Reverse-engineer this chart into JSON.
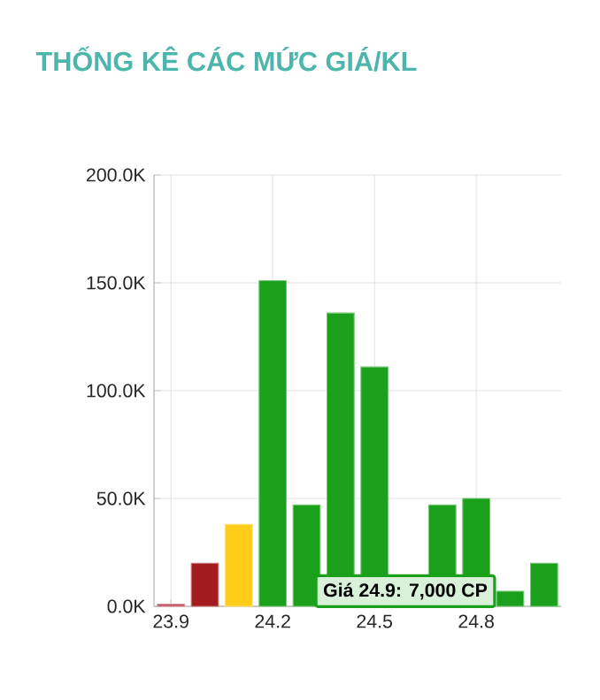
{
  "chart_data": {
    "type": "bar",
    "title": "THỐNG KÊ CÁC MỨC GIÁ/KL",
    "x": [
      23.9,
      24.0,
      24.1,
      24.2,
      24.3,
      24.4,
      24.5,
      24.6,
      24.7,
      24.8,
      24.9,
      25.0
    ],
    "values": [
      1000,
      20000,
      38000,
      151000,
      47000,
      136000,
      111000,
      null,
      47000,
      50000,
      7000,
      20000
    ],
    "colors": [
      "#c0505f",
      "#a31b1e",
      "#ffcc1a",
      "#1aa01a",
      "#1aa01a",
      "#1aa01a",
      "#1aa01a",
      "#1aa01a",
      "#1aa01a",
      "#1aa01a",
      "#1aa01a",
      "#1aa01a"
    ],
    "xlim": [
      23.85,
      25.05
    ],
    "xticks": [
      23.9,
      24.2,
      24.5,
      24.8
    ],
    "ylim": [
      0,
      200000
    ],
    "yticks": [
      {
        "value": 0,
        "label": "0.0K"
      },
      {
        "value": 50000,
        "label": "50.0K"
      },
      {
        "value": 100000,
        "label": "100.0K"
      },
      {
        "value": 150000,
        "label": "150.0K"
      },
      {
        "value": 200000,
        "label": "200.0K"
      }
    ],
    "grid": true,
    "annotations": [
      {
        "text": "Giá 24.9: 7,000 CP",
        "x": 24.9,
        "y": 7000
      }
    ]
  }
}
